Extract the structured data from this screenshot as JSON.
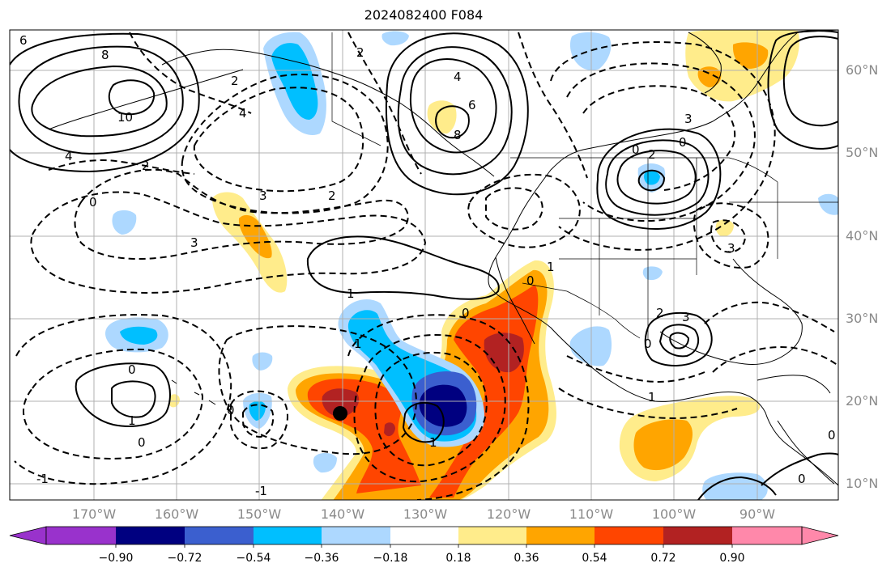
{
  "title": "2024082400 F084",
  "map": {
    "lat_labels": [
      "60°N",
      "50°N",
      "40°N",
      "30°N",
      "20°N",
      "10°N"
    ],
    "lon_labels": [
      "170°W",
      "160°W",
      "150°W",
      "140°W",
      "130°W",
      "120°W",
      "110°W",
      "100°W",
      "90°W"
    ],
    "contour_labels": [
      "6",
      "8",
      "10",
      "2",
      "4",
      "2",
      "4",
      "6",
      "8",
      "4",
      "2",
      "0",
      "3",
      "2",
      "3",
      "0",
      "1",
      "1",
      "0",
      "0",
      "1",
      "0",
      "-1",
      "1",
      "0",
      "3",
      "2",
      "0",
      "3",
      "1",
      "0",
      "0",
      "2",
      "3",
      "0",
      "-1",
      "0",
      "1"
    ],
    "colors": {
      "land_line": "#000000",
      "grid": "#b0b0b0",
      "contour": "#000000",
      "anomaly_positive": [
        "#ffec8b",
        "#ffa500",
        "#ff4500",
        "#b22222",
        "#ff88aa"
      ],
      "anomaly_negative": [
        "#add8ff",
        "#00bfff",
        "#3b5fcf",
        "#000080",
        "#9932cc"
      ]
    }
  },
  "colorbar": {
    "tick_labels": [
      "−0.90",
      "−0.72",
      "−0.54",
      "−0.36",
      "−0.18",
      "0.18",
      "0.36",
      "0.54",
      "0.72",
      "0.90"
    ],
    "colors": [
      "#9932cc",
      "#000080",
      "#3b5fcf",
      "#00bfff",
      "#add8ff",
      "#ffffff",
      "#ffec8b",
      "#ffa500",
      "#ff4500",
      "#b22222",
      "#ff88aa"
    ]
  }
}
